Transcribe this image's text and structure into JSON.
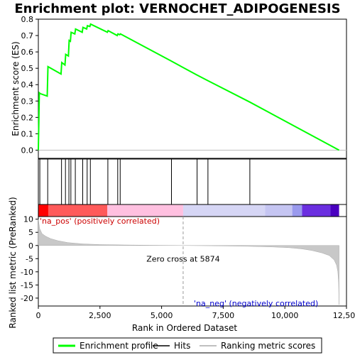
{
  "chart_data": {
    "type": "line",
    "title": "Enrichment plot: VERNOCHET_ADIPOGENESIS",
    "xlabel": "Rank in Ordered Dataset",
    "top_panel": {
      "ylabel": "Enrichment score (ES)",
      "ylim": [
        -0.05,
        0.8
      ],
      "yticks": [
        0.0,
        0.1,
        0.2,
        0.3,
        0.4,
        0.5,
        0.6,
        0.7,
        0.8
      ],
      "series": [
        {
          "name": "Enrichment profile",
          "color": "#00ff00",
          "x": [
            0,
            40,
            80,
            360,
            390,
            920,
            950,
            1080,
            1110,
            1220,
            1250,
            1300,
            1330,
            1480,
            1510,
            1780,
            1810,
            1960,
            1990,
            2090,
            2120,
            2800,
            2830,
            3200,
            3230,
            3300,
            3330,
            5380,
            6420,
            6870,
            8560,
            12200
          ],
          "y": [
            0.0,
            0.35,
            0.345,
            0.33,
            0.51,
            0.465,
            0.535,
            0.52,
            0.585,
            0.575,
            0.67,
            0.665,
            0.72,
            0.71,
            0.74,
            0.72,
            0.75,
            0.74,
            0.76,
            0.755,
            0.77,
            0.72,
            0.73,
            0.7,
            0.71,
            0.705,
            0.71,
            0.545,
            0.46,
            0.425,
            0.295,
            0.0
          ]
        }
      ]
    },
    "hits": {
      "name": "Hits",
      "x": [
        60,
        380,
        940,
        1100,
        1240,
        1320,
        1500,
        1800,
        1980,
        2110,
        2820,
        3220,
        3320,
        5400,
        6440,
        6880,
        8580
      ]
    },
    "rank_bar": {
      "note": "colored rank-position bar",
      "segments": [
        {
          "x0": 0,
          "x1": 2800,
          "color": "#ff5a5a"
        },
        {
          "x0": 2800,
          "x1": 5874,
          "color": "#ffc0e0"
        },
        {
          "x0": 5874,
          "x1": 9200,
          "color": "#d6d6f5"
        },
        {
          "x0": 9200,
          "x1": 10300,
          "color": "#c5c5f2"
        },
        {
          "x0": 10300,
          "x1": 10700,
          "color": "#9a9aee"
        },
        {
          "x0": 10700,
          "x1": 11850,
          "color": "#6b2fe0"
        },
        {
          "x0": 11850,
          "x1": 12200,
          "color": "#4a00c0"
        }
      ],
      "dark_start": {
        "x0": 0,
        "x1": 400,
        "color": "#ff0000"
      }
    },
    "bottom_panel": {
      "ylabel": "Ranked list metric (PreRanked)",
      "ylim": [
        -23,
        11
      ],
      "yticks": [
        10,
        5,
        0,
        -5,
        -10,
        -15,
        -20
      ],
      "metric": {
        "name": "Ranking metric scores",
        "color": "#aaaaaa",
        "x": [
          0,
          50,
          150,
          300,
          500,
          800,
          1200,
          1800,
          2500,
          3500,
          4500,
          5874,
          7000,
          8500,
          9500,
          10200,
          10700,
          11100,
          11500,
          11800,
          12000,
          12100,
          12150,
          12180,
          12200
        ],
        "y": [
          10,
          6.5,
          4.5,
          3.5,
          2.6,
          1.8,
          1.1,
          0.6,
          0.35,
          0.2,
          0.1,
          0.0,
          -0.1,
          -0.3,
          -0.55,
          -0.85,
          -1.3,
          -1.9,
          -2.8,
          -3.8,
          -5.5,
          -7.5,
          -10,
          -14,
          -22.5
        ]
      },
      "zero_cross_label": "Zero cross at 5874",
      "zero_cross_x": 5874,
      "pos_label": "'na_pos' (positively correlated)",
      "neg_label": "'na_neg' (negatively correlated)"
    },
    "xlim": [
      0,
      12500
    ],
    "xticks": [
      0,
      2500,
      5000,
      7500,
      10000,
      12500
    ],
    "xtick_labels": [
      "0",
      "2,500",
      "5,000",
      "7,500",
      "10,000",
      "12,500"
    ],
    "legend": [
      {
        "label": "Enrichment profile",
        "color": "#00ff00"
      },
      {
        "label": "Hits",
        "color": "#000000"
      },
      {
        "label": "Ranking metric scores",
        "color": "#aaaaaa"
      }
    ]
  }
}
